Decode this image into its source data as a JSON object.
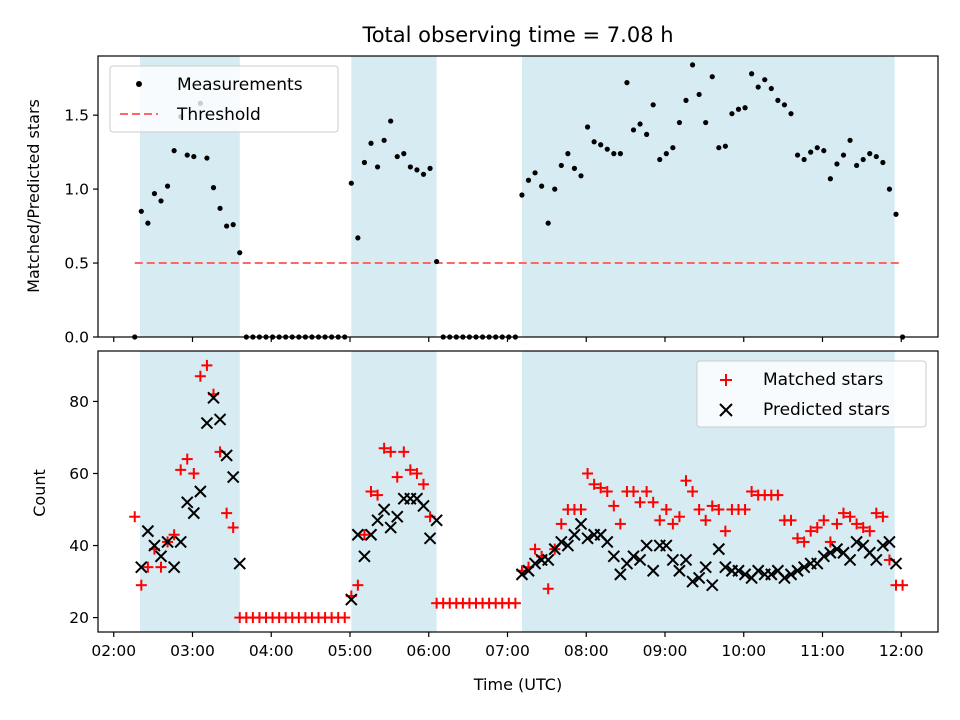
{
  "chart_data": [
    {
      "type": "scatter",
      "title": "Total observing time = 7.08 h",
      "xlabel": "",
      "ylabel": "Matched/Predicted stars",
      "xlim": [
        "01:48",
        "12:28"
      ],
      "ylim": [
        0,
        1.9
      ],
      "yticks": [
        0.0,
        0.5,
        1.0,
        1.5
      ],
      "ytick_labels": [
        "0.0",
        "0.5",
        "1.0",
        "1.5"
      ],
      "grid": false,
      "legend_position": "top-left",
      "shaded_intervals": [
        [
          "02:20",
          "03:36"
        ],
        [
          "05:01",
          "06:06"
        ],
        [
          "07:11",
          "11:55"
        ]
      ],
      "colors": {
        "measurements": "#000000",
        "threshold": "#ff6666",
        "shade": "#add8e6"
      },
      "series": [
        {
          "name": "Measurements",
          "marker": "dot",
          "x": [
            "02:16",
            "02:21",
            "02:26",
            "02:31",
            "02:36",
            "02:41",
            "02:46",
            "02:51",
            "02:56",
            "03:01",
            "03:06",
            "03:11",
            "03:16",
            "03:21",
            "03:26",
            "03:31",
            "03:36",
            "03:41",
            "03:46",
            "03:51",
            "03:56",
            "04:01",
            "04:06",
            "04:11",
            "04:16",
            "04:21",
            "04:26",
            "04:31",
            "04:36",
            "04:41",
            "04:46",
            "04:51",
            "04:56",
            "05:01",
            "05:06",
            "05:11",
            "05:16",
            "05:21",
            "05:26",
            "05:31",
            "05:36",
            "05:41",
            "05:46",
            "05:51",
            "05:56",
            "06:01",
            "06:06",
            "06:11",
            "06:16",
            "06:21",
            "06:26",
            "06:31",
            "06:36",
            "06:41",
            "06:46",
            "06:51",
            "06:56",
            "07:01",
            "07:06",
            "07:11",
            "07:16",
            "07:21",
            "07:26",
            "07:31",
            "07:36",
            "07:41",
            "07:46",
            "07:51",
            "07:56",
            "08:01",
            "08:06",
            "08:11",
            "08:16",
            "08:21",
            "08:26",
            "08:31",
            "08:36",
            "08:41",
            "08:46",
            "08:51",
            "08:56",
            "09:01",
            "09:06",
            "09:11",
            "09:16",
            "09:21",
            "09:26",
            "09:31",
            "09:36",
            "09:41",
            "09:46",
            "09:51",
            "09:56",
            "10:01",
            "10:06",
            "10:11",
            "10:16",
            "10:21",
            "10:26",
            "10:31",
            "10:36",
            "10:41",
            "10:46",
            "10:51",
            "10:56",
            "11:01",
            "11:06",
            "11:11",
            "11:16",
            "11:21",
            "11:26",
            "11:31",
            "11:36",
            "11:41",
            "11:46",
            "11:51",
            "11:56",
            "12:01"
          ],
          "y": [
            0.0,
            0.85,
            0.77,
            0.97,
            0.92,
            1.02,
            1.26,
            1.49,
            1.23,
            1.22,
            1.58,
            1.21,
            1.01,
            0.87,
            0.75,
            0.76,
            0.57,
            0.0,
            0.0,
            0.0,
            0.0,
            0.0,
            0.0,
            0.0,
            0.0,
            0.0,
            0.0,
            0.0,
            0.0,
            0.0,
            0.0,
            0.0,
            0.0,
            1.04,
            0.67,
            1.18,
            1.31,
            1.15,
            1.33,
            1.46,
            1.22,
            1.24,
            1.15,
            1.13,
            1.1,
            1.14,
            0.51,
            0.0,
            0.0,
            0.0,
            0.0,
            0.0,
            0.0,
            0.0,
            0.0,
            0.0,
            0.0,
            0.0,
            0.0,
            0.96,
            1.06,
            1.11,
            1.02,
            0.77,
            1.0,
            1.16,
            1.24,
            1.14,
            1.09,
            1.42,
            1.32,
            1.3,
            1.27,
            1.24,
            1.24,
            1.72,
            1.4,
            1.44,
            1.37,
            1.57,
            1.2,
            1.24,
            1.28,
            1.45,
            1.6,
            1.84,
            1.64,
            1.45,
            1.76,
            1.28,
            1.29,
            1.51,
            1.54,
            1.55,
            1.78,
            1.69,
            1.74,
            1.68,
            1.6,
            1.57,
            1.51,
            1.23,
            1.2,
            1.25,
            1.28,
            1.26,
            1.07,
            1.17,
            1.23,
            1.33,
            1.16,
            1.2,
            1.24,
            1.22,
            1.18,
            1.0,
            0.83,
            0.0
          ]
        },
        {
          "name": "Threshold",
          "marker": "dashed-line",
          "x": [
            "02:16",
            "12:01"
          ],
          "y": [
            0.5,
            0.5
          ]
        }
      ]
    },
    {
      "type": "scatter",
      "title": "",
      "xlabel": "Time (UTC)",
      "ylabel": "Count",
      "xlim": [
        "01:48",
        "12:28"
      ],
      "ylim": [
        16,
        94
      ],
      "yticks": [
        20,
        40,
        60,
        80
      ],
      "ytick_labels": [
        "20",
        "40",
        "60",
        "80"
      ],
      "xticks": [
        "02:00",
        "03:00",
        "04:00",
        "05:00",
        "06:00",
        "07:00",
        "08:00",
        "09:00",
        "10:00",
        "11:00",
        "12:00"
      ],
      "xtick_labels": [
        "02:00",
        "03:00",
        "04:00",
        "05:00",
        "06:00",
        "07:00",
        "08:00",
        "09:00",
        "10:00",
        "11:00",
        "12:00"
      ],
      "grid": false,
      "legend_position": "top-right",
      "shaded_intervals": [
        [
          "02:20",
          "03:36"
        ],
        [
          "05:01",
          "06:06"
        ],
        [
          "07:11",
          "11:55"
        ]
      ],
      "colors": {
        "matched": "#ff0000",
        "predicted": "#000000",
        "shade": "#add8e6"
      },
      "series": [
        {
          "name": "Matched stars",
          "marker": "plus",
          "x": [
            "02:16",
            "02:21",
            "02:26",
            "02:31",
            "02:36",
            "02:41",
            "02:46",
            "02:51",
            "02:56",
            "03:01",
            "03:06",
            "03:11",
            "03:16",
            "03:21",
            "03:26",
            "03:31",
            "03:36",
            "03:41",
            "03:46",
            "03:51",
            "03:56",
            "04:01",
            "04:06",
            "04:11",
            "04:16",
            "04:21",
            "04:26",
            "04:31",
            "04:36",
            "04:41",
            "04:46",
            "04:51",
            "04:56",
            "05:01",
            "05:06",
            "05:11",
            "05:16",
            "05:21",
            "05:26",
            "05:31",
            "05:36",
            "05:41",
            "05:46",
            "05:51",
            "05:56",
            "06:01",
            "06:06",
            "06:11",
            "06:16",
            "06:21",
            "06:26",
            "06:31",
            "06:36",
            "06:41",
            "06:46",
            "06:51",
            "06:56",
            "07:01",
            "07:06",
            "07:11",
            "07:16",
            "07:21",
            "07:26",
            "07:31",
            "07:36",
            "07:41",
            "07:46",
            "07:51",
            "07:56",
            "08:01",
            "08:06",
            "08:11",
            "08:16",
            "08:21",
            "08:26",
            "08:31",
            "08:36",
            "08:41",
            "08:46",
            "08:51",
            "08:56",
            "09:01",
            "09:06",
            "09:11",
            "09:16",
            "09:21",
            "09:26",
            "09:31",
            "09:36",
            "09:41",
            "09:46",
            "09:51",
            "09:56",
            "10:01",
            "10:06",
            "10:11",
            "10:16",
            "10:21",
            "10:26",
            "10:31",
            "10:36",
            "10:41",
            "10:46",
            "10:51",
            "10:56",
            "11:01",
            "11:06",
            "11:11",
            "11:16",
            "11:21",
            "11:26",
            "11:31",
            "11:36",
            "11:41",
            "11:46",
            "11:51",
            "11:56",
            "12:01"
          ],
          "y": [
            48,
            29,
            34,
            39,
            34,
            41,
            43,
            61,
            64,
            60,
            87,
            90,
            82,
            66,
            49,
            45,
            20,
            20,
            20,
            20,
            20,
            20,
            20,
            20,
            20,
            20,
            20,
            20,
            20,
            20,
            20,
            20,
            20,
            26,
            29,
            43,
            55,
            54,
            67,
            66,
            59,
            66,
            61,
            60,
            57,
            48,
            24,
            24,
            24,
            24,
            24,
            24,
            24,
            24,
            24,
            24,
            24,
            24,
            24,
            33,
            34,
            39,
            37,
            28,
            39,
            46,
            50,
            50,
            50,
            60,
            57,
            56,
            55,
            51,
            46,
            55,
            55,
            52,
            55,
            52,
            47,
            50,
            46,
            48,
            58,
            55,
            50,
            47,
            51,
            50,
            44,
            50,
            50,
            50,
            55,
            54,
            54,
            54,
            54,
            47,
            47,
            42,
            41,
            44,
            45,
            47,
            41,
            46,
            49,
            48,
            46,
            45,
            44,
            49,
            48,
            36,
            29,
            29
          ]
        },
        {
          "name": "Predicted stars",
          "marker": "x",
          "x": [
            "02:21",
            "02:26",
            "02:31",
            "02:36",
            "02:41",
            "02:46",
            "02:51",
            "02:56",
            "03:01",
            "03:06",
            "03:11",
            "03:16",
            "03:21",
            "03:26",
            "03:31",
            "03:36",
            "05:01",
            "05:06",
            "05:11",
            "05:16",
            "05:21",
            "05:26",
            "05:31",
            "05:36",
            "05:41",
            "05:46",
            "05:51",
            "05:56",
            "06:01",
            "06:06",
            "07:11",
            "07:16",
            "07:21",
            "07:26",
            "07:31",
            "07:36",
            "07:41",
            "07:46",
            "07:51",
            "07:56",
            "08:01",
            "08:06",
            "08:11",
            "08:16",
            "08:21",
            "08:26",
            "08:31",
            "08:36",
            "08:41",
            "08:46",
            "08:51",
            "08:56",
            "09:01",
            "09:06",
            "09:11",
            "09:16",
            "09:21",
            "09:26",
            "09:31",
            "09:36",
            "09:41",
            "09:46",
            "09:51",
            "09:56",
            "10:01",
            "10:06",
            "10:11",
            "10:16",
            "10:21",
            "10:26",
            "10:31",
            "10:36",
            "10:41",
            "10:46",
            "10:51",
            "10:56",
            "11:01",
            "11:06",
            "11:11",
            "11:16",
            "11:21",
            "11:26",
            "11:31",
            "11:36",
            "11:41",
            "11:46",
            "11:51",
            "11:56"
          ],
          "y": [
            34,
            44,
            40,
            37,
            41,
            34,
            41,
            52,
            49,
            55,
            74,
            81,
            75,
            65,
            59,
            35,
            25,
            43,
            37,
            43,
            47,
            50,
            45,
            48,
            53,
            53,
            53,
            51,
            42,
            47,
            32,
            33,
            35,
            36,
            36,
            39,
            41,
            40,
            43,
            46,
            42,
            43,
            43,
            41,
            37,
            32,
            35,
            37,
            36,
            40,
            33,
            40,
            40,
            36,
            33,
            36,
            30,
            31,
            34,
            29,
            39,
            34,
            33,
            33,
            32,
            31,
            33,
            32,
            32,
            33,
            31,
            32,
            33,
            34,
            35,
            35,
            37,
            38,
            39,
            38,
            36,
            41,
            40,
            38,
            36,
            40,
            41,
            35
          ]
        }
      ]
    }
  ]
}
